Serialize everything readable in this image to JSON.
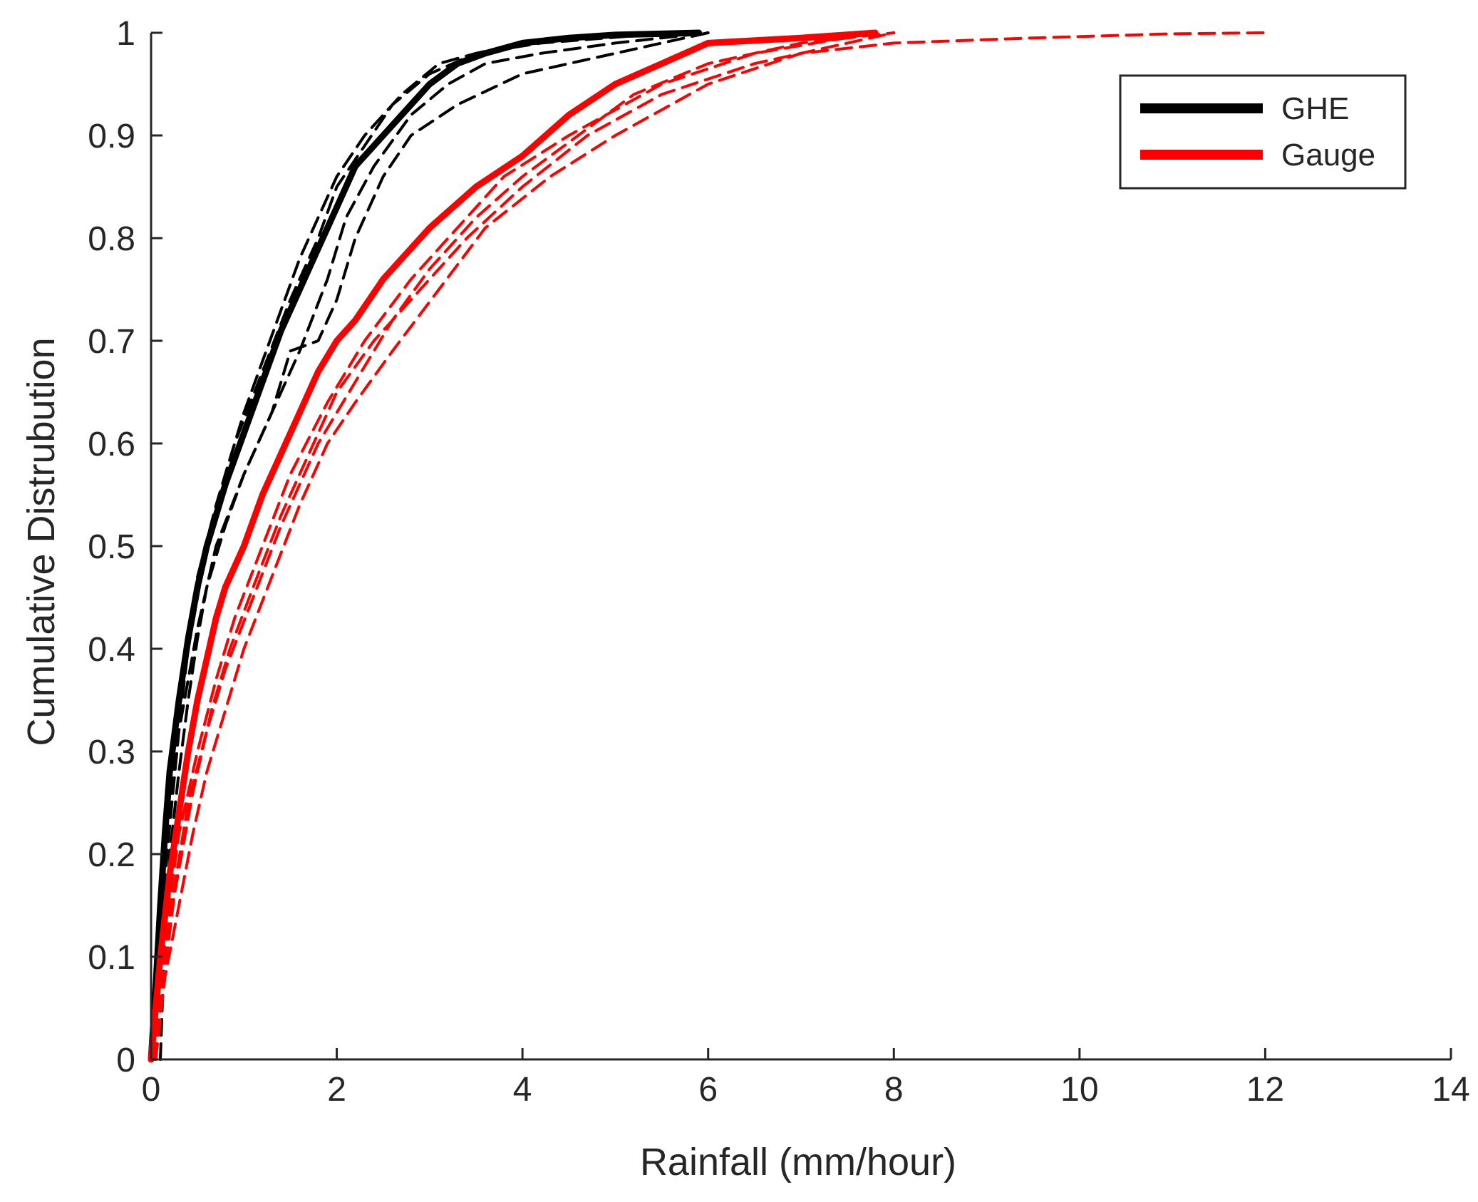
{
  "chart_data": {
    "type": "line",
    "title": "",
    "xlabel": "Rainfall (mm/hour)",
    "ylabel": "Cumulative Distrubution",
    "xlim": [
      0,
      14
    ],
    "ylim": [
      0,
      1
    ],
    "xticks": [
      "0",
      "2",
      "4",
      "6",
      "8",
      "10",
      "12",
      "14"
    ],
    "yticks": [
      "0",
      "0.1",
      "0.2",
      "0.3",
      "0.4",
      "0.5",
      "0.6",
      "0.7",
      "0.8",
      "0.9",
      "1"
    ],
    "grid": false,
    "legend_position": "top-right",
    "legend": [
      {
        "label": "GHE",
        "color": "#000000"
      },
      {
        "label": "Gauge",
        "color": "#ff0000"
      }
    ],
    "series": [
      {
        "name": "GHE",
        "color": "#000000",
        "style": "solid",
        "x": [
          0,
          0.05,
          0.1,
          0.15,
          0.2,
          0.3,
          0.4,
          0.5,
          0.6,
          0.7,
          0.8,
          1.0,
          1.2,
          1.4,
          1.6,
          1.8,
          2.0,
          2.2,
          2.5,
          2.8,
          3.0,
          3.3,
          3.6,
          4.0,
          4.5,
          5.0,
          5.5,
          5.9
        ],
        "y": [
          0,
          0.07,
          0.15,
          0.22,
          0.28,
          0.35,
          0.41,
          0.46,
          0.5,
          0.53,
          0.56,
          0.61,
          0.66,
          0.71,
          0.75,
          0.79,
          0.83,
          0.87,
          0.9,
          0.93,
          0.95,
          0.97,
          0.98,
          0.99,
          0.995,
          0.998,
          0.999,
          1.0
        ]
      },
      {
        "color": "#000000",
        "style": "dashed",
        "x": [
          0.1,
          0.12,
          0.15,
          0.2,
          0.3,
          0.4,
          0.5,
          0.6,
          0.8,
          1.0,
          1.3,
          1.6,
          1.9,
          2.1,
          2.4,
          2.8,
          3.2,
          3.6,
          4.2,
          5.0,
          6.0
        ],
        "y": [
          0,
          0.05,
          0.12,
          0.2,
          0.28,
          0.35,
          0.41,
          0.46,
          0.52,
          0.57,
          0.63,
          0.69,
          0.76,
          0.82,
          0.87,
          0.92,
          0.95,
          0.97,
          0.98,
          0.99,
          1.0
        ]
      },
      {
        "color": "#000000",
        "style": "dashed",
        "x": [
          0,
          0.1,
          0.2,
          0.35,
          0.5,
          0.7,
          0.9,
          1.2,
          1.5,
          1.8,
          2.0,
          2.3,
          2.6,
          3.0,
          3.5,
          4.0,
          4.5,
          5.0,
          5.8
        ],
        "y": [
          0,
          0.13,
          0.27,
          0.38,
          0.47,
          0.54,
          0.6,
          0.67,
          0.74,
          0.8,
          0.85,
          0.89,
          0.93,
          0.96,
          0.98,
          0.99,
          0.995,
          0.999,
          1.0
        ]
      },
      {
        "color": "#000000",
        "style": "dashed",
        "x": [
          0.05,
          0.15,
          0.3,
          0.5,
          0.7,
          1.0,
          1.3,
          1.5,
          1.8,
          2.0,
          2.2,
          2.5,
          2.8,
          3.3,
          4.0,
          5.0,
          6.0
        ],
        "y": [
          0,
          0.18,
          0.32,
          0.42,
          0.5,
          0.57,
          0.63,
          0.69,
          0.7,
          0.74,
          0.8,
          0.86,
          0.9,
          0.93,
          0.96,
          0.98,
          1.0
        ]
      },
      {
        "color": "#000000",
        "style": "dashed",
        "x": [
          0,
          0.2,
          0.4,
          0.6,
          0.8,
          1.0,
          1.2,
          1.4,
          1.6,
          1.8,
          2.0,
          2.3,
          2.7,
          3.1,
          3.5,
          4.2,
          5.2,
          6.0
        ],
        "y": [
          0,
          0.25,
          0.4,
          0.5,
          0.57,
          0.63,
          0.68,
          0.73,
          0.78,
          0.82,
          0.86,
          0.9,
          0.94,
          0.97,
          0.98,
          0.99,
          0.997,
          1.0
        ]
      },
      {
        "name": "Gauge",
        "color": "#ff0000",
        "style": "solid",
        "x": [
          0,
          0.1,
          0.2,
          0.3,
          0.4,
          0.5,
          0.6,
          0.7,
          0.8,
          1.0,
          1.2,
          1.4,
          1.6,
          1.8,
          2.0,
          2.2,
          2.5,
          3.0,
          3.5,
          4.0,
          4.5,
          5.0,
          5.5,
          6.0,
          7.0,
          7.8
        ],
        "y": [
          0,
          0.1,
          0.18,
          0.24,
          0.3,
          0.35,
          0.39,
          0.43,
          0.46,
          0.5,
          0.55,
          0.59,
          0.63,
          0.67,
          0.7,
          0.72,
          0.76,
          0.81,
          0.85,
          0.88,
          0.92,
          0.95,
          0.97,
          0.99,
          0.995,
          1.0
        ]
      },
      {
        "color": "#ff0000",
        "style": "dashed",
        "x": [
          0.05,
          0.15,
          0.3,
          0.45,
          0.6,
          0.8,
          1.0,
          1.3,
          1.6,
          1.9,
          2.2,
          2.6,
          3.1,
          3.6,
          4.3,
          5.0,
          6.0,
          7.0,
          8.0,
          9.5,
          11.0,
          12.0
        ],
        "y": [
          0,
          0.08,
          0.15,
          0.22,
          0.28,
          0.34,
          0.4,
          0.47,
          0.54,
          0.6,
          0.64,
          0.69,
          0.75,
          0.81,
          0.86,
          0.9,
          0.95,
          0.98,
          0.99,
          0.995,
          0.999,
          1.0
        ]
      },
      {
        "color": "#ff0000",
        "style": "dashed",
        "x": [
          0,
          0.2,
          0.4,
          0.6,
          0.8,
          1.1,
          1.4,
          1.8,
          2.2,
          2.6,
          3.0,
          3.5,
          4.0,
          4.6,
          5.2,
          6.0,
          7.0,
          8.0
        ],
        "y": [
          0,
          0.14,
          0.25,
          0.32,
          0.38,
          0.45,
          0.52,
          0.6,
          0.66,
          0.72,
          0.77,
          0.82,
          0.86,
          0.9,
          0.94,
          0.97,
          0.99,
          1.0
        ]
      },
      {
        "color": "#ff0000",
        "style": "dashed",
        "x": [
          0.02,
          0.15,
          0.3,
          0.5,
          0.7,
          0.9,
          1.2,
          1.5,
          1.9,
          2.3,
          2.8,
          3.3,
          3.8,
          4.5,
          5.5,
          6.5,
          7.8
        ],
        "y": [
          0,
          0.12,
          0.22,
          0.3,
          0.37,
          0.43,
          0.5,
          0.57,
          0.64,
          0.7,
          0.76,
          0.81,
          0.86,
          0.9,
          0.95,
          0.98,
          1.0
        ]
      },
      {
        "color": "#ff0000",
        "style": "dashed",
        "x": [
          0.03,
          0.25,
          0.45,
          0.65,
          0.85,
          1.1,
          1.4,
          1.7,
          2.0,
          2.4,
          2.9,
          3.4,
          4.0,
          4.7,
          5.5,
          6.5,
          7.5,
          8.0
        ],
        "y": [
          0,
          0.16,
          0.26,
          0.34,
          0.4,
          0.46,
          0.53,
          0.59,
          0.65,
          0.7,
          0.75,
          0.8,
          0.85,
          0.9,
          0.94,
          0.97,
          0.99,
          1.0
        ]
      }
    ]
  }
}
